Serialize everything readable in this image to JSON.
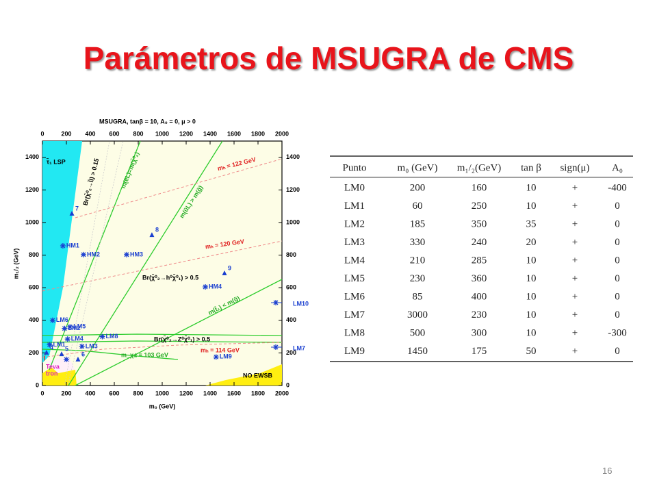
{
  "title": "Parámetros de MSUGRA de CMS",
  "page_number": "16",
  "figure": {
    "title": "MSUGRA, tanβ = 10, A₀ = 0, μ > 0",
    "xlabel": "m₀ (GeV)",
    "ylabel": "m₁/₂ (GeV)",
    "xlim": [
      0,
      2000
    ],
    "ylim": [
      0,
      1500
    ],
    "xticks": [
      0,
      200,
      400,
      600,
      800,
      1000,
      1200,
      1400,
      1600,
      1800,
      2000
    ],
    "yticks": [
      0,
      200,
      400,
      600,
      800,
      1000,
      1200,
      1400
    ],
    "points": [
      {
        "label": "HM1",
        "m0": 171,
        "m12": 857,
        "marker": "star"
      },
      {
        "label": "HM2",
        "m0": 343,
        "m12": 803,
        "marker": "star"
      },
      {
        "label": "HM3",
        "m0": 703,
        "m12": 803,
        "marker": "star"
      },
      {
        "label": "HM4",
        "m0": 1360,
        "m12": 605,
        "marker": "star"
      },
      {
        "label": "7",
        "m0": 246,
        "m12": 1055,
        "marker": "triangle"
      },
      {
        "label": "8",
        "m0": 914,
        "m12": 924,
        "marker": "triangle"
      },
      {
        "label": "9",
        "m0": 1520,
        "m12": 689,
        "marker": "triangle"
      },
      {
        "label": "4",
        "m0": 34,
        "m12": 202,
        "marker": "triangle"
      },
      {
        "label": "5",
        "m0": 160,
        "m12": 193,
        "marker": "triangle"
      },
      {
        "label": "6",
        "m0": 297,
        "m12": 160,
        "marker": "triangle"
      }
    ],
    "offscale": [
      "LM10",
      "LM7"
    ],
    "annotations": {
      "lsp": "τ̃₁ LSP",
      "mh122": "mₕ = 122 GeV",
      "mh120": "mₕ = 120 GeV",
      "mh114": "mₕ = 114 GeV",
      "mchi": "m_χ± = 103 GeV",
      "ewsb": "NO EWSB",
      "teva": "Teva",
      "tron": "tron",
      "slepton": "l̃",
      "brh": "Br(χ̃⁰₂→h⁰χ̃⁰₁) > 0.5",
      "brz": "Br(χ̃⁰₂→Z⁰χ̃⁰₁) > 0.5",
      "brl": "Br(χ̃⁰₂→l̃l) > 0.15",
      "meL": "m(ẽL)=m(χ̃⁰₂)",
      "muL": "m(ũL) > m(g̃)",
      "mt1": "m(t̃₁) < m(g̃)"
    }
  },
  "table": {
    "header": [
      "Punto",
      "m₀ (GeV)",
      "m₁/₂(GeV)",
      "tan β",
      "sign(μ)",
      "A₀"
    ],
    "rows": [
      [
        "LM0",
        200,
        160,
        10,
        "+",
        -400
      ],
      [
        "LM1",
        60,
        250,
        10,
        "+",
        0
      ],
      [
        "LM2",
        185,
        350,
        35,
        "+",
        0
      ],
      [
        "LM3",
        330,
        240,
        20,
        "+",
        0
      ],
      [
        "LM4",
        210,
        285,
        10,
        "+",
        0
      ],
      [
        "LM5",
        230,
        360,
        10,
        "+",
        0
      ],
      [
        "LM6",
        85,
        400,
        10,
        "+",
        0
      ],
      [
        "LM7",
        3000,
        230,
        10,
        "+",
        0
      ],
      [
        "LM8",
        500,
        300,
        10,
        "+",
        -300
      ],
      [
        "LM9",
        1450,
        175,
        50,
        "+",
        0
      ]
    ]
  }
}
